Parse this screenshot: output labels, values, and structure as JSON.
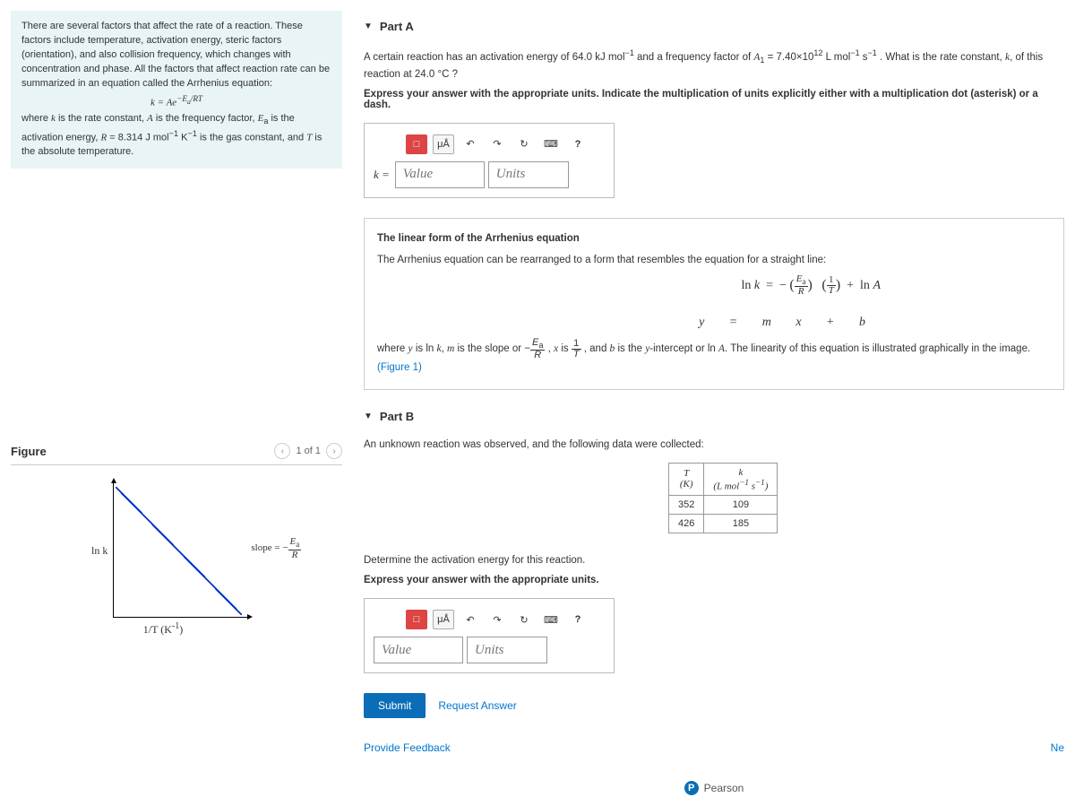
{
  "intro": {
    "p1": "There are several factors that affect the rate of a reaction. These factors include temperature, activation energy, steric factors (orientation), and also collision frequency, which changes with concentration and phase. All the factors that affect reaction rate can be summarized in an equation called the Arrhenius equation:",
    "eq_html": "k = Ae<sup>−E<sub>a</sub>/RT</sup>",
    "p2_html": "where <span class='serif-i'>k</span> is the rate constant, <span class='serif-i'>A</span> is the frequency factor, <span class='serif-i'>E</span><sub>a</sub> is the activation energy, <span class='serif-i'>R</span> = 8.314 J mol<sup>−1</sup> K<sup>−1</sup> is the gas constant, and <span class='serif-i'>T</span> is the absolute temperature."
  },
  "partA": {
    "label": "Part A",
    "q_html": "A certain reaction has an activation energy of 64.0 kJ mol<sup>−1</sup> and a frequency factor of <span class='serif-i'>A</span><sub>1</sub> = 7.40×10<sup>12</sup> L mol<sup>−1</sup> s<sup>−1</sup> . What is the rate constant, <span class='serif-i'>k</span>, of this reaction at 24.0 °C ?",
    "instr": "Express your answer with the appropriate units.  Indicate the multiplication of units explicitly either with a multiplication dot (asterisk) or a dash.",
    "k_label": "k =",
    "value_ph": "Value",
    "units_ph": "Units"
  },
  "toolbar": {
    "templates": "□",
    "symbols": "μÅ",
    "undo": "↶",
    "redo": "↷",
    "reset": "↻",
    "keyboard": "⌨",
    "help": "?"
  },
  "linear": {
    "heading": "The linear form of the Arrhenius equation",
    "text": "The Arrhenius equation can be rearranged to a form that resembles the equation for a straight line:",
    "eq_html": "ln <span class='serif-i'>k</span> &nbsp;=&nbsp; − <span class='paren-frac'>(</span><span class='frac'><span class='n'><i>E</i><sub>a</sub></span><span class='d'><i>R</i></span></span><span class='paren-frac'>)</span> &nbsp; <span class='paren-frac'>(</span><span class='frac'><span class='n'>1</span><span class='d'><i>T</i></span></span><span class='paren-frac'>)</span> &nbsp;+&nbsp; ln <span class='serif-i'>A</span>",
    "vars": "y   =   m   x   +   b",
    "foot_html": "where <span class='serif-i'>y</span> is ln <span class='serif-i'>k</span>, <span class='serif-i'>m</span> is the slope or −<span class='frac'><span class='n'><i>E</i><sub>a</sub></span><span class='d'><i>R</i></span></span> , <span class='serif-i'>x</span> is <span class='frac'><span class='n'>1</span><span class='d'><i>T</i></span></span> , and <span class='serif-i'>b</span> is the <span class='serif-i'>y</span>-intercept or ln <span class='serif-i'>A</span>. The linearity of this equation is illustrated graphically in the image.",
    "fig_link": "(Figure 1)"
  },
  "partB": {
    "label": "Part B",
    "q1": "An unknown reaction was observed, and the following data were collected:",
    "table": {
      "h1_html": "<i>T</i><br>(K)",
      "h2_html": "<i>k</i><br>(L mol<sup>−1</sup> s<sup>−1</sup>)",
      "rows": [
        [
          "352",
          "109"
        ],
        [
          "426",
          "185"
        ]
      ]
    },
    "q2": "Determine the activation energy for this reaction.",
    "instr2": "Express your answer with the appropriate units.",
    "value_ph": "Value",
    "units_ph": "Units",
    "submit": "Submit",
    "request": "Request Answer"
  },
  "figure": {
    "title": "Figure",
    "pager": "1 of 1",
    "y_label": "ln k",
    "x_label_html": "1/T (K<sup>-1</sup>)",
    "slope_html": "slope = −<span class='frac'><span class='n'><i>E</i><sub>a</sub></span><span class='d'><i>R</i></span></span>"
  },
  "colors": {
    "accent": "#0b6db7",
    "link": "#0077cc"
  },
  "feedback": "Provide Feedback",
  "next": "Ne",
  "footer": "Pearson"
}
